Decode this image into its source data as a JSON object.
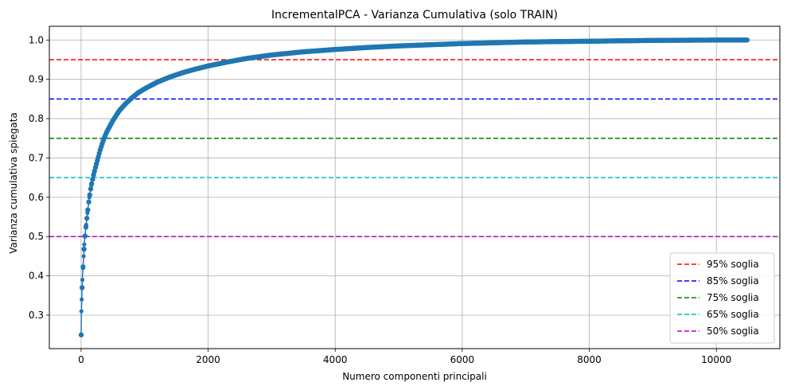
{
  "chart_data": {
    "type": "line",
    "title": "IncrementalPCA - Varianza Cumulativa (solo TRAIN)",
    "xlabel": "Numero componenti principali",
    "ylabel": "Varianza cumulativa spiegata",
    "xlim": [
      -500,
      11000
    ],
    "ylim": [
      0.215,
      1.035
    ],
    "xticks": [
      0,
      2000,
      4000,
      6000,
      8000,
      10000
    ],
    "yticks": [
      0.3,
      0.4,
      0.5,
      0.6,
      0.7,
      0.8,
      0.9,
      1.0
    ],
    "grid": true,
    "legend_position": "lower-right",
    "series": [
      {
        "color": "#1f77b4",
        "marker": "dot",
        "x": [
          1,
          5,
          10,
          20,
          30,
          40,
          50,
          60,
          80,
          100,
          130,
          160,
          200,
          250,
          300,
          350,
          400,
          500,
          600,
          700,
          800,
          900,
          1000,
          1200,
          1400,
          1600,
          1800,
          2000,
          2300,
          2600,
          3000,
          3500,
          4000,
          4500,
          5000,
          5500,
          6000,
          6500,
          7000,
          7500,
          8000,
          8500,
          9000,
          9500,
          10000,
          10500
        ],
        "y": [
          0.25,
          0.31,
          0.34,
          0.39,
          0.42,
          0.45,
          0.48,
          0.5,
          0.53,
          0.56,
          0.6,
          0.63,
          0.66,
          0.69,
          0.72,
          0.745,
          0.765,
          0.795,
          0.82,
          0.838,
          0.853,
          0.866,
          0.876,
          0.893,
          0.906,
          0.917,
          0.926,
          0.934,
          0.944,
          0.953,
          0.962,
          0.97,
          0.976,
          0.981,
          0.985,
          0.988,
          0.991,
          0.993,
          0.995,
          0.996,
          0.997,
          0.998,
          0.999,
          0.9995,
          0.9999,
          1.0
        ]
      }
    ],
    "thresholds": [
      {
        "name": "95% soglia",
        "value": 0.95,
        "color": "#ff0000"
      },
      {
        "name": "85% soglia",
        "value": 0.85,
        "color": "#0000ff"
      },
      {
        "name": "75% soglia",
        "value": 0.75,
        "color": "#008000"
      },
      {
        "name": "65% soglia",
        "value": 0.65,
        "color": "#00bfbf"
      },
      {
        "name": "50% soglia",
        "value": 0.5,
        "color": "#bf00bf"
      }
    ]
  }
}
